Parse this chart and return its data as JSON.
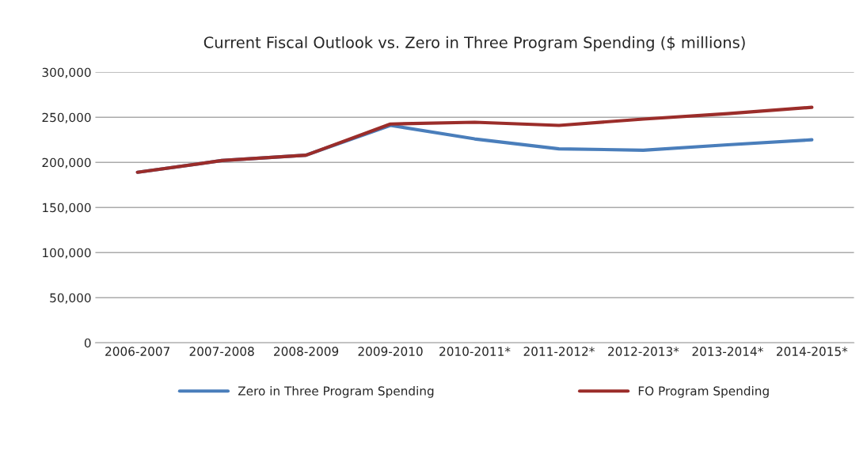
{
  "chart_data": {
    "type": "line",
    "title": "Current Fiscal Outlook vs. Zero in Three Program Spending ($ millions)",
    "categories": [
      "2006-2007",
      "2007-2008",
      "2008-2009",
      "2009-2010",
      "2010-2011*",
      "2011-2012*",
      "2012-2013*",
      "2013-2014*",
      "2014-2015*"
    ],
    "series": [
      {
        "name": "Zero in Three Program Spending",
        "color": "#4a7ebb",
        "values": [
          189000,
          202000,
          208000,
          241000,
          226000,
          215000,
          213500,
          219500,
          225000
        ]
      },
      {
        "name": "FO Program Spending",
        "color": "#9b2d2a",
        "values": [
          189000,
          202000,
          208000,
          242500,
          244500,
          241000,
          248000,
          254000,
          261000
        ]
      }
    ],
    "ylim": [
      0,
      300000
    ],
    "yticks": [
      {
        "value": 0,
        "label": "0"
      },
      {
        "value": 50000,
        "label": "50,000"
      },
      {
        "value": 100000,
        "label": "100,000"
      },
      {
        "value": 150000,
        "label": "150,000"
      },
      {
        "value": 200000,
        "label": "200,000"
      },
      {
        "value": 250000,
        "label": "250,000"
      },
      {
        "value": 300000,
        "label": "300,000"
      }
    ],
    "grid": "y",
    "legend": "bottom",
    "marker": "none",
    "line_style": "solid"
  }
}
